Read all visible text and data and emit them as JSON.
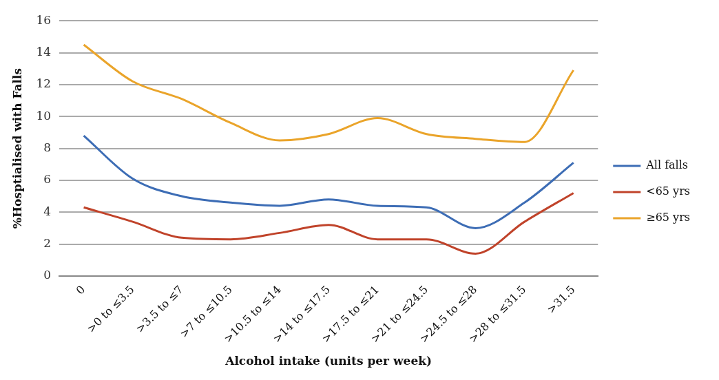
{
  "chart_data": {
    "type": "line",
    "xlabel": "Alcohol intake (units per week)",
    "ylabel": "%Hosptialised with Falls",
    "categories": [
      "0",
      ">0 to ≤3.5",
      ">3.5 to ≤7",
      ">7 to ≤10.5",
      ">10.5 to ≤14",
      ">14 to ≤17.5",
      ">17.5 to ≤21",
      ">21 to ≤24.5",
      ">24.5 to ≤28",
      ">28 to ≤31.5",
      ">31.5"
    ],
    "series": [
      {
        "name": "All falls",
        "color": "#3d6db5",
        "values": [
          8.8,
          6.1,
          5.0,
          4.6,
          4.4,
          4.8,
          4.4,
          4.3,
          3.0,
          4.6,
          7.1
        ]
      },
      {
        "name": "<65 yrs",
        "color": "#c0432a",
        "values": [
          4.3,
          3.4,
          2.4,
          2.3,
          2.7,
          3.2,
          2.3,
          2.3,
          1.4,
          3.4,
          5.2
        ]
      },
      {
        "name": "≥65 yrs",
        "color": "#eaa42a",
        "values": [
          14.5,
          12.2,
          11.1,
          9.6,
          8.5,
          8.9,
          9.9,
          8.9,
          8.6,
          8.4,
          12.9
        ]
      }
    ],
    "ylim": [
      0,
      16
    ],
    "yticks": [
      0,
      2,
      4,
      6,
      8,
      10,
      12,
      14,
      16
    ],
    "grid": "y",
    "legend": "right",
    "marker": "none",
    "line_style": "solid"
  }
}
